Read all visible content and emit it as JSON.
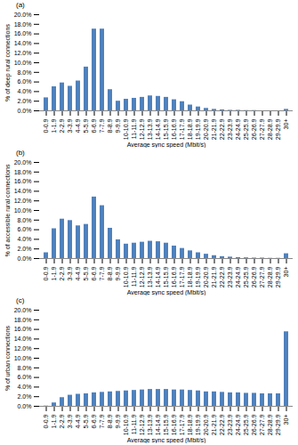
{
  "chart_data": [
    {
      "type": "bar",
      "title": "(a)",
      "x_label": "Average sync speed (Mbit/s)",
      "y_label": "% of deep rural connections",
      "categories": [
        "0-0.9",
        "1-1.9",
        "2-2.9",
        "3-3.9",
        "4-4.9",
        "5-5.9",
        "6-6.9",
        "7-7.9",
        "8-8.9",
        "9-9.9",
        "10-10.9",
        "11-11.9",
        "12-12.9",
        "13-13.9",
        "14-14.9",
        "15-15.9",
        "16-16.9",
        "17-17.9",
        "18-18.9",
        "19-19.9",
        "20-20.9",
        "21-21.9",
        "22-22.9",
        "23-23.9",
        "24-24.9",
        "25-25.9",
        "26-26.9",
        "27-27.9",
        "28-28.9",
        "29-29.9",
        "30+"
      ],
      "values": [
        2.7,
        5.0,
        5.8,
        5.1,
        6.2,
        9.1,
        17.0,
        17.0,
        4.4,
        2.0,
        2.4,
        2.6,
        2.8,
        3.1,
        3.0,
        2.8,
        2.3,
        1.9,
        1.2,
        0.8,
        0.5,
        0.3,
        0.2,
        0.1,
        0.1,
        0.05,
        0.05,
        0,
        0,
        0,
        0.3
      ],
      "color": "#4f81bd",
      "ylim": [
        0,
        20
      ],
      "yticks": [
        {
          "value": 0,
          "label": "0.0%"
        },
        {
          "value": 2,
          "label": "2.0%"
        },
        {
          "value": 4,
          "label": "4.0%"
        },
        {
          "value": 6,
          "label": "6.0%"
        },
        {
          "value": 8,
          "label": "8.0%"
        },
        {
          "value": 10,
          "label": "10.0%"
        },
        {
          "value": 12,
          "label": "12.0%"
        },
        {
          "value": 14,
          "label": "14.0%"
        },
        {
          "value": 16,
          "label": "16.0%"
        },
        {
          "value": 18,
          "label": "18.0%"
        },
        {
          "value": 20,
          "label": "20.0%"
        }
      ]
    },
    {
      "type": "bar",
      "title": "(b)",
      "x_label": "Average sync speed (Mbit/s)",
      "y_label": "% of accessible rural connections",
      "categories": [
        "0-0.9",
        "1-1.9",
        "2-2.9",
        "3-3.9",
        "4-4.9",
        "5-5.9",
        "6-6.9",
        "7-7.9",
        "8-8.9",
        "9-9.9",
        "10-10.9",
        "11-11.9",
        "12-12.9",
        "13-13.9",
        "14-14.9",
        "15-15.9",
        "16-16.9",
        "17-17.9",
        "18-18.9",
        "19-19.9",
        "20-20.9",
        "21-21.9",
        "22-22.9",
        "23-23.9",
        "24-24.9",
        "25-25.9",
        "26-26.9",
        "27-27.9",
        "28-28.9",
        "29-29.9",
        "30+"
      ],
      "values": [
        1.2,
        6.2,
        8.2,
        7.9,
        6.8,
        7.1,
        12.8,
        11.0,
        6.3,
        3.9,
        3.0,
        3.2,
        3.4,
        3.6,
        3.5,
        3.2,
        2.6,
        2.1,
        1.6,
        1.2,
        0.9,
        0.6,
        0.4,
        0.3,
        0.2,
        0.15,
        0.1,
        0.1,
        0.05,
        0.05,
        1.0
      ],
      "color": "#4f81bd",
      "ylim": [
        0,
        20
      ],
      "yticks": [
        {
          "value": 0,
          "label": "0.0%"
        },
        {
          "value": 2,
          "label": "2.0%"
        },
        {
          "value": 4,
          "label": "4.0%"
        },
        {
          "value": 6,
          "label": "6.0%"
        },
        {
          "value": 8,
          "label": "8.0%"
        },
        {
          "value": 10,
          "label": "10.0%"
        },
        {
          "value": 12,
          "label": "12.0%"
        },
        {
          "value": 14,
          "label": "14.0%"
        },
        {
          "value": 16,
          "label": "16.0%"
        },
        {
          "value": 18,
          "label": "18.0%"
        },
        {
          "value": 20,
          "label": "20.0%"
        }
      ]
    },
    {
      "type": "bar",
      "title": "(c)",
      "x_label": "Average sync speed (Mbit/s)",
      "y_label": "% of urban connections",
      "categories": [
        "0-0.9",
        "1-1.9",
        "2-2.9",
        "3-3.9",
        "4-4.9",
        "5-5.9",
        "6-6.9",
        "7-7.9",
        "8-8.9",
        "9-9.9",
        "10-10.9",
        "11-11.9",
        "12-12.9",
        "13-13.9",
        "14-14.9",
        "15-15.9",
        "16-16.9",
        "17-17.9",
        "18-18.9",
        "19-19.9",
        "20-20.9",
        "21-21.9",
        "22-22.9",
        "23-23.9",
        "24-24.9",
        "25-25.9",
        "26-26.9",
        "27-27.9",
        "28-28.9",
        "29-29.9",
        "30+"
      ],
      "values": [
        0.05,
        0.7,
        1.8,
        2.3,
        2.5,
        2.6,
        2.8,
        2.9,
        3.0,
        3.1,
        3.2,
        3.3,
        3.4,
        3.5,
        3.5,
        3.5,
        3.4,
        3.4,
        3.3,
        3.2,
        3.0,
        3.0,
        2.9,
        2.8,
        2.8,
        2.7,
        2.7,
        2.6,
        2.6,
        2.6,
        15.5
      ],
      "color": "#4f81bd",
      "ylim": [
        0,
        20
      ],
      "yticks": [
        {
          "value": 0,
          "label": "0.0%"
        },
        {
          "value": 2,
          "label": "2.0%"
        },
        {
          "value": 4,
          "label": "4.0%"
        },
        {
          "value": 6,
          "label": "6.0%"
        },
        {
          "value": 8,
          "label": "8.0%"
        },
        {
          "value": 10,
          "label": "10.0%"
        },
        {
          "value": 12,
          "label": "12.0%"
        },
        {
          "value": 14,
          "label": "14.0%"
        },
        {
          "value": 16,
          "label": "16.0%"
        },
        {
          "value": 18,
          "label": "18.0%"
        },
        {
          "value": 20,
          "label": "20.0%"
        }
      ]
    }
  ]
}
